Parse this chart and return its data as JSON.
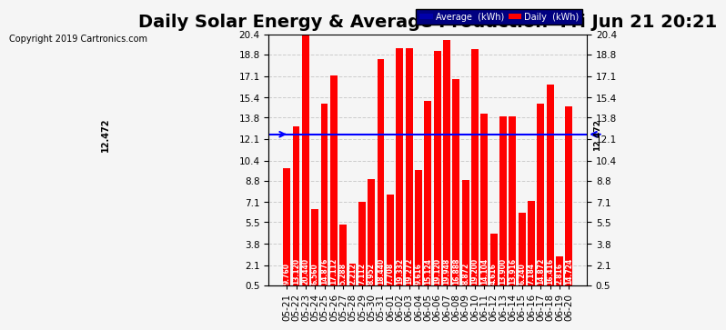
{
  "title": "Daily Solar Energy & Average Production  Fri Jun 21 20:21",
  "copyright": "Copyright 2019 Cartronics.com",
  "categories": [
    "05-21",
    "05-22",
    "05-23",
    "05-24",
    "05-25",
    "05-26",
    "05-27",
    "05-28",
    "05-29",
    "05-30",
    "05-31",
    "06-01",
    "06-02",
    "06-03",
    "06-04",
    "06-05",
    "06-06",
    "06-07",
    "06-08",
    "06-09",
    "06-10",
    "06-11",
    "06-12",
    "06-13",
    "06-14",
    "06-15",
    "06-16",
    "06-17",
    "06-18",
    "06-19",
    "06-20"
  ],
  "values": [
    9.76,
    13.12,
    20.44,
    6.56,
    14.876,
    17.112,
    5.288,
    2.212,
    7.112,
    8.952,
    18.44,
    7.708,
    19.332,
    19.272,
    9.616,
    15.124,
    19.12,
    19.948,
    16.888,
    8.872,
    19.2,
    14.104,
    4.616,
    13.9,
    13.916,
    6.24,
    7.184,
    14.872,
    16.416,
    2.816,
    14.724
  ],
  "average": 12.472,
  "bar_color": "#ff0000",
  "avg_line_color": "#0000ff",
  "background_color": "#f5f5f5",
  "grid_color": "#cccccc",
  "ylim": [
    0.5,
    20.4
  ],
  "yticks": [
    0.5,
    2.1,
    3.8,
    5.5,
    7.1,
    8.8,
    10.4,
    12.1,
    13.8,
    15.4,
    17.1,
    18.8,
    20.4
  ],
  "avg_label": "12.472",
  "legend_avg_color": "#0000aa",
  "legend_daily_color": "#ff0000",
  "title_fontsize": 14,
  "tick_fontsize": 7.5
}
